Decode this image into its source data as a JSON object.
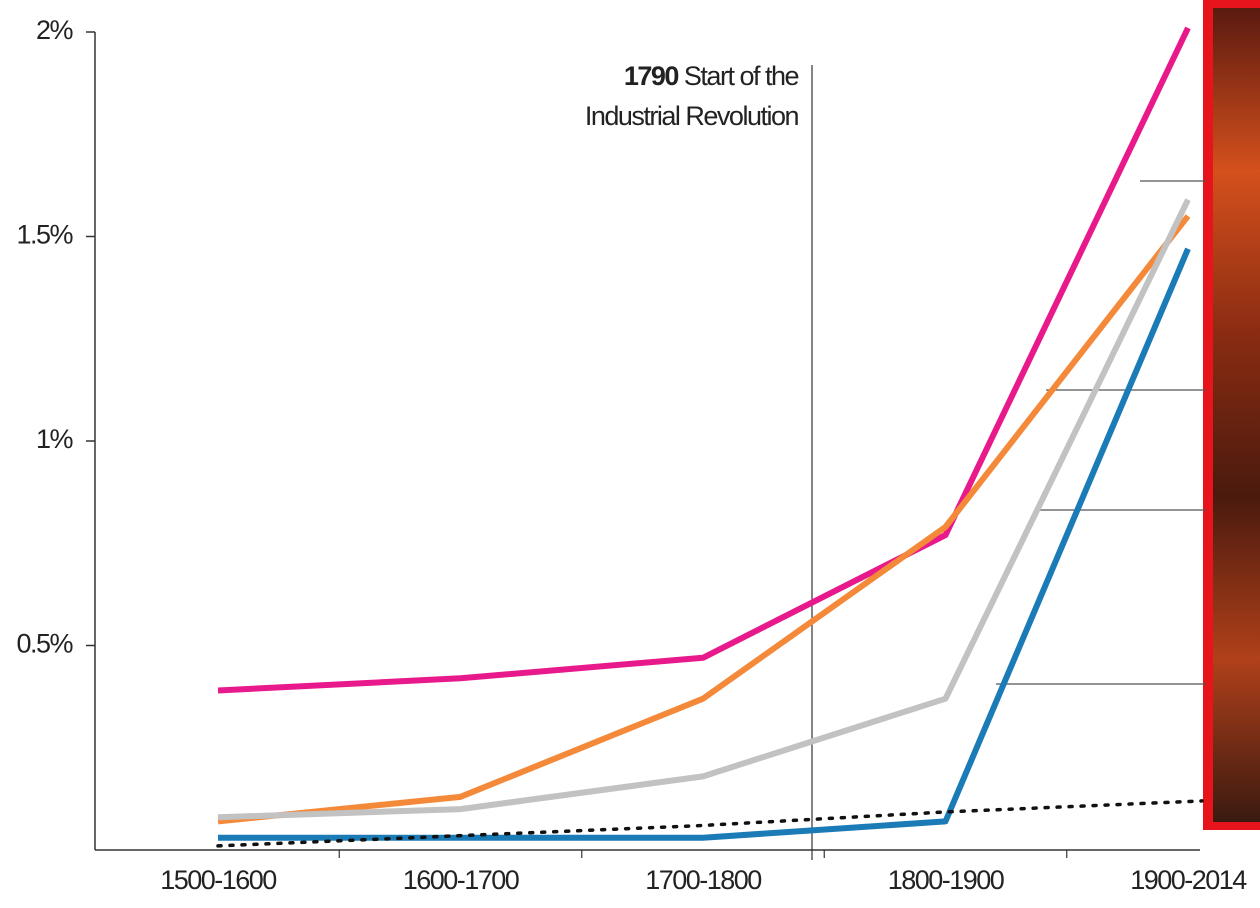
{
  "chart_data": {
    "type": "line",
    "annotation": {
      "year": "1790",
      "lines": [
        "Start of the",
        "Industrial Revolution"
      ]
    },
    "categories": [
      "1500-1600",
      "1600-1700",
      "1700-1800",
      "1800-1900",
      "1900-2014"
    ],
    "series": [
      {
        "color": "#e8198b",
        "values": [
          0.39,
          0.42,
          0.47,
          0.77,
          2.01
        ]
      },
      {
        "color": "#f5893a",
        "values": [
          0.07,
          0.13,
          0.37,
          0.79,
          1.55
        ]
      },
      {
        "color": "#c2c2c2",
        "values": [
          0.08,
          0.1,
          0.18,
          0.37,
          1.59
        ]
      },
      {
        "color": "#1b7bb6",
        "values": [
          0.03,
          0.03,
          0.03,
          0.07,
          1.47
        ]
      },
      {
        "color": "#111111",
        "dotted": true,
        "values": [
          0.01,
          0.035,
          0.06,
          0.093,
          0.12
        ]
      }
    ],
    "ylim": [
      0,
      2
    ],
    "yticks": [
      {
        "value": 0.5,
        "label": "0.5%"
      },
      {
        "value": 1,
        "label": "1%"
      },
      {
        "value": 1.5,
        "label": "1.5%"
      },
      {
        "value": 2,
        "label": "2%"
      }
    ]
  }
}
